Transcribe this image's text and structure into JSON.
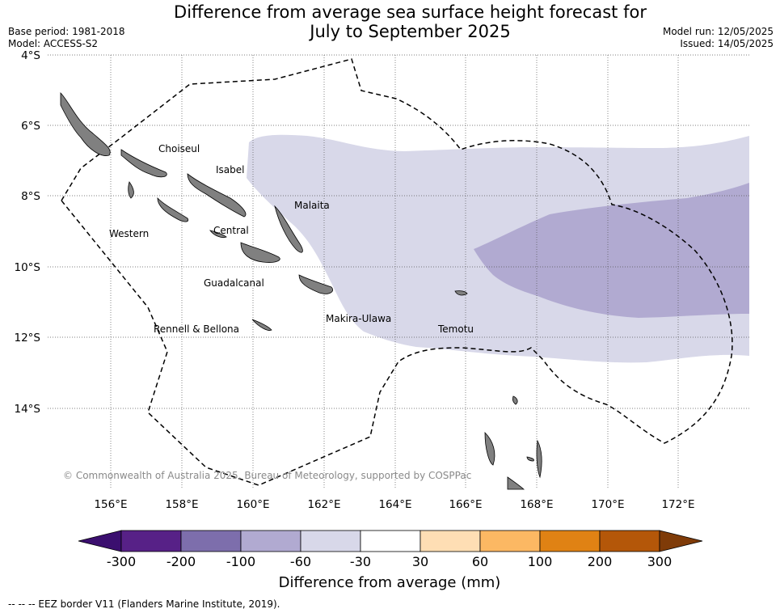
{
  "header": {
    "title_line1": "Difference from average sea surface height forecast for",
    "title_line2": "July to September 2025",
    "base_period": "Base period: 1981-2018",
    "model": "Model: ACCESS-S2",
    "model_run": "Model run: 12/05/2025",
    "issued": "Issued: 14/05/2025"
  },
  "map": {
    "lat_ticks": [
      "4°S",
      "6°S",
      "8°S",
      "10°S",
      "12°S",
      "14°S"
    ],
    "lon_ticks": [
      "156°E",
      "158°E",
      "160°E",
      "162°E",
      "164°E",
      "166°E",
      "168°E",
      "170°E",
      "172°E"
    ],
    "regions": [
      "Choiseul",
      "Isabel",
      "Malaita",
      "Western",
      "Central",
      "Guadalcanal",
      "Rennell & Bellona",
      "Makira-Ulawa",
      "Temotu"
    ],
    "copyright": "© Commonwealth of Australia 2025, Bureau of Meteorology, supported by COSPPac",
    "land_color": "#808080",
    "anomaly_colors": {
      "-60 to -30": "#d8d8e9",
      "-100 to -60": "#b1aad1"
    }
  },
  "colorbar": {
    "title": "Difference from average (mm)",
    "ticks": [
      "-300",
      "-200",
      "-100",
      "-60",
      "-30",
      "30",
      "60",
      "100",
      "200",
      "300"
    ],
    "colors": [
      "#3b0f6f",
      "#572187",
      "#7d6eac",
      "#b1aad1",
      "#d8d8e9",
      "#ffffff",
      "#fedeb4",
      "#fcb863",
      "#e08214",
      "#b45709",
      "#7f3b08"
    ]
  },
  "footnote": "--  --  -- EEZ border V11 (Flanders Marine Institute, 2019)."
}
